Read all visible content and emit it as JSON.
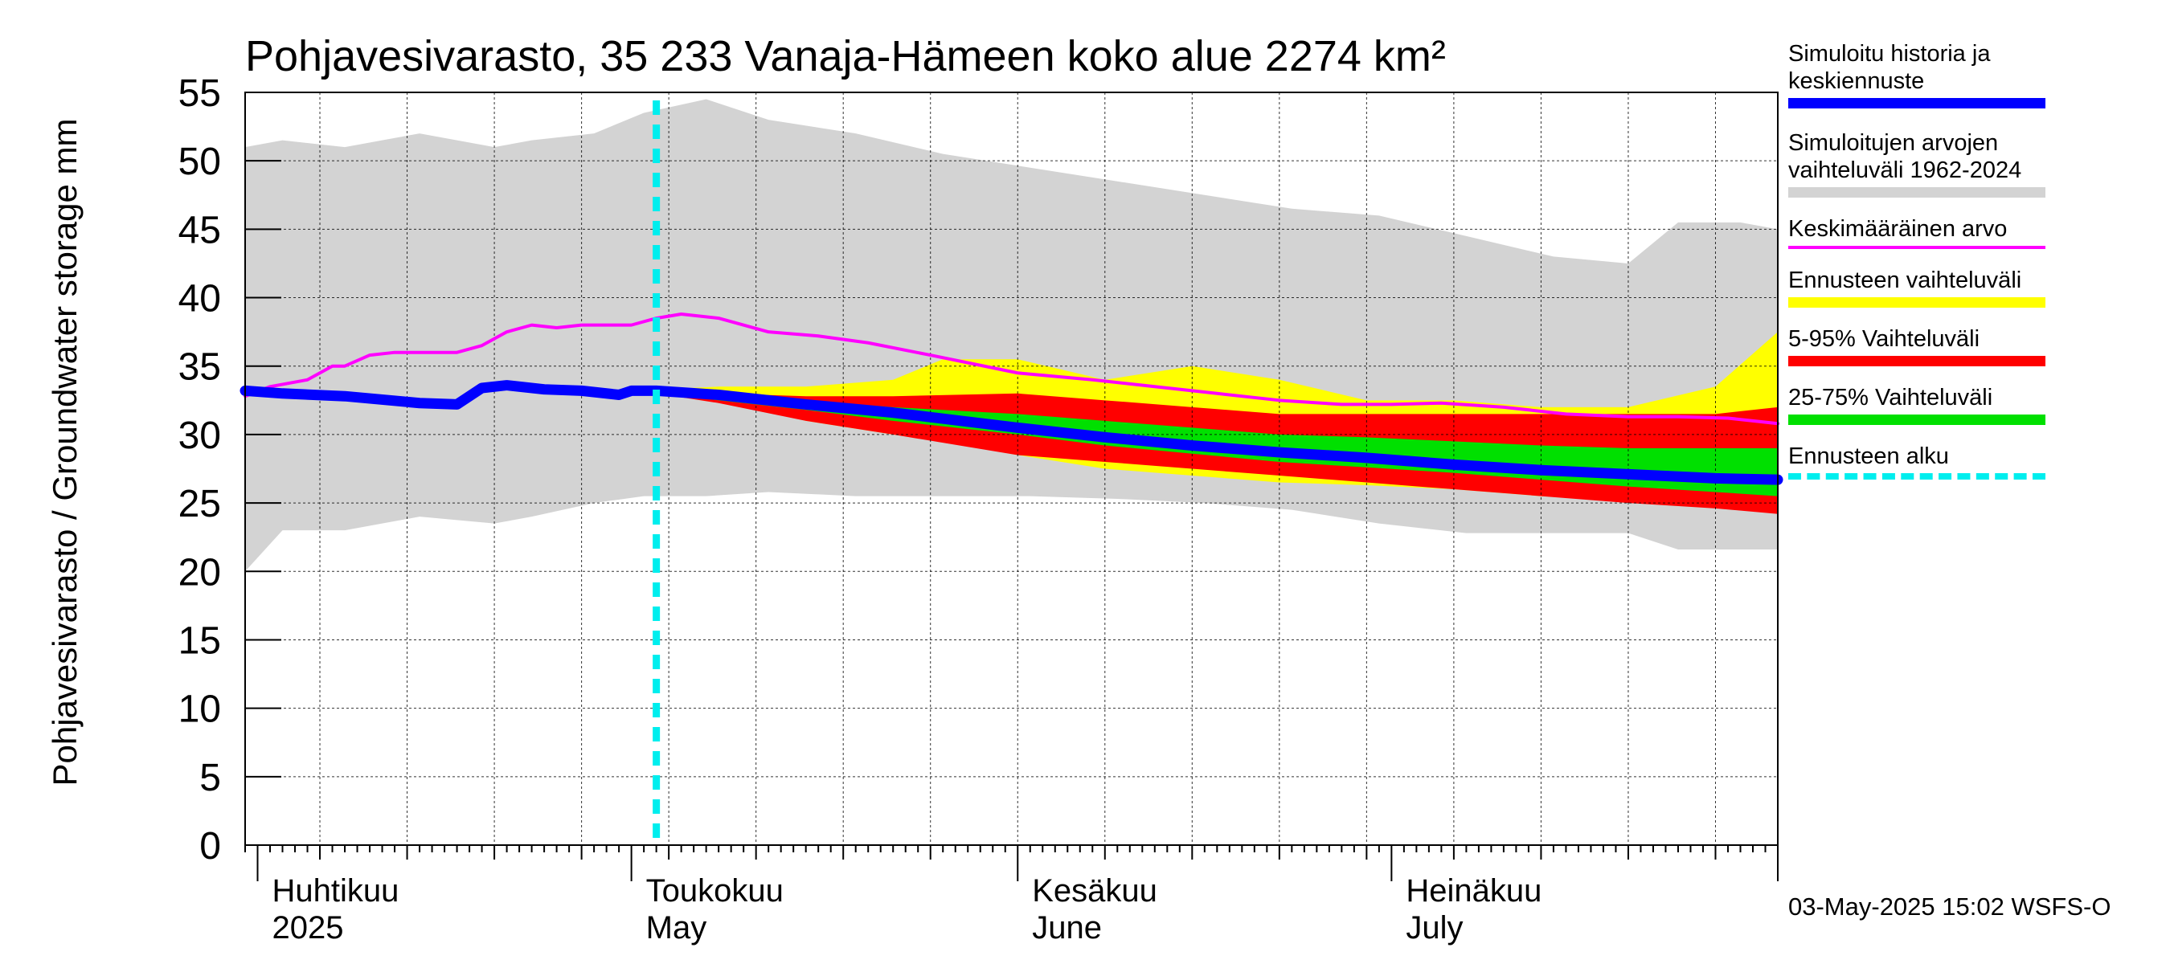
{
  "chart_data": {
    "type": "area",
    "title": "Pohjavesivarasto, 35 233 Vanaja-Hämeen koko alue 2274 km²",
    "ylabel": "Pohjavesivarasto / Groundwater storage   mm",
    "ylim": [
      0,
      55
    ],
    "yticks": [
      0,
      5,
      10,
      15,
      20,
      25,
      30,
      35,
      40,
      45,
      50,
      55
    ],
    "xlim": [
      "2025-03-31",
      "2025-08-01"
    ],
    "grid": true,
    "x_axis_labels": [
      {
        "date": "2025-04-01",
        "line1": "Huhtikuu",
        "line2": "2025"
      },
      {
        "date": "2025-05-01",
        "line1": "Toukokuu",
        "line2": "May"
      },
      {
        "date": "2025-06-01",
        "line1": "Kesäkuu",
        "line2": "June"
      },
      {
        "date": "2025-07-01",
        "line1": "Heinäkuu",
        "line2": "July"
      }
    ],
    "forecast_start": "2025-05-03",
    "series": [
      {
        "name": "Simuloitujen arvojen vaihteluväli 1962-2024",
        "kind": "band",
        "color": "#d3d3d3",
        "x": [
          "2025-03-31",
          "2025-04-03",
          "2025-04-08",
          "2025-04-14",
          "2025-04-20",
          "2025-04-23",
          "2025-04-28",
          "2025-05-02",
          "2025-05-07",
          "2025-05-12",
          "2025-05-19",
          "2025-05-26",
          "2025-06-02",
          "2025-06-09",
          "2025-06-16",
          "2025-06-23",
          "2025-06-30",
          "2025-07-07",
          "2025-07-14",
          "2025-07-20",
          "2025-07-24",
          "2025-07-29",
          "2025-08-01"
        ],
        "upper": [
          51,
          51.5,
          51,
          52,
          51,
          51.5,
          52,
          53.5,
          54.5,
          53,
          52,
          50.5,
          49.5,
          48.5,
          47.5,
          46.5,
          46,
          44.5,
          43,
          42.5,
          45.5,
          45.5,
          45
        ],
        "lower": [
          20,
          23,
          23,
          24,
          23.5,
          24,
          25,
          25.5,
          25.5,
          25.8,
          25.5,
          25.5,
          25.5,
          25.3,
          25,
          24.5,
          23.5,
          22.8,
          22.8,
          22.8,
          21.6,
          21.6,
          21.6
        ]
      },
      {
        "name": "Ennusteen vaihteluväli",
        "kind": "band",
        "color": "#ffff00",
        "x": [
          "2025-05-03",
          "2025-05-08",
          "2025-05-15",
          "2025-05-22",
          "2025-05-26",
          "2025-06-01",
          "2025-06-08",
          "2025-06-15",
          "2025-06-22",
          "2025-06-29",
          "2025-07-06",
          "2025-07-13",
          "2025-07-20",
          "2025-07-27",
          "2025-08-01"
        ],
        "upper": [
          33.3,
          33.5,
          33.5,
          34,
          35.5,
          35.5,
          34,
          35,
          34,
          32.5,
          32.5,
          32,
          32,
          33.5,
          37.5
        ],
        "lower": [
          33,
          32.5,
          31,
          30,
          29.5,
          28.5,
          27.5,
          27,
          26.5,
          26.3,
          26,
          25.5,
          25.2,
          24.9,
          24.7
        ]
      },
      {
        "name": "5-95% Vaihteluväli",
        "kind": "band",
        "color": "#ff0000",
        "x": [
          "2025-05-03",
          "2025-05-08",
          "2025-05-15",
          "2025-05-22",
          "2025-06-01",
          "2025-06-08",
          "2025-06-15",
          "2025-06-22",
          "2025-06-29",
          "2025-07-06",
          "2025-07-13",
          "2025-07-20",
          "2025-07-27",
          "2025-08-01"
        ],
        "upper": [
          33.2,
          33,
          32.8,
          32.8,
          33,
          32.5,
          32,
          31.5,
          31.5,
          31.5,
          31.5,
          31.5,
          31.5,
          32
        ],
        "lower": [
          33,
          32.3,
          31,
          30,
          28.5,
          28,
          27.5,
          27,
          26.5,
          26,
          25.5,
          25,
          24.6,
          24.2
        ]
      },
      {
        "name": "25-75% Vaihteluväli",
        "kind": "band",
        "color": "#00e000",
        "x": [
          "2025-05-03",
          "2025-05-08",
          "2025-05-15",
          "2025-05-22",
          "2025-06-01",
          "2025-06-08",
          "2025-06-15",
          "2025-06-22",
          "2025-06-29",
          "2025-07-06",
          "2025-07-13",
          "2025-07-20",
          "2025-07-27",
          "2025-08-01"
        ],
        "upper": [
          33.1,
          32.9,
          32.5,
          32,
          31.5,
          31,
          30.5,
          30,
          29.8,
          29.5,
          29.2,
          29,
          29,
          29
        ],
        "lower": [
          33,
          32.5,
          31.8,
          31,
          30,
          29.2,
          28.6,
          28,
          27.6,
          27.2,
          26.7,
          26.2,
          25.8,
          25.5
        ]
      },
      {
        "name": "Keskimääräinen arvo",
        "kind": "line",
        "color": "#ff00ff",
        "width": 4,
        "x": [
          "2025-03-31",
          "2025-04-02",
          "2025-04-05",
          "2025-04-07",
          "2025-04-08",
          "2025-04-10",
          "2025-04-12",
          "2025-04-15",
          "2025-04-17",
          "2025-04-19",
          "2025-04-21",
          "2025-04-23",
          "2025-04-25",
          "2025-04-27",
          "2025-04-29",
          "2025-05-01",
          "2025-05-03",
          "2025-05-05",
          "2025-05-08",
          "2025-05-12",
          "2025-05-16",
          "2025-05-20",
          "2025-05-25",
          "2025-06-01",
          "2025-06-07",
          "2025-06-12",
          "2025-06-17",
          "2025-06-22",
          "2025-06-27",
          "2025-07-01",
          "2025-07-05",
          "2025-07-10",
          "2025-07-15",
          "2025-07-20",
          "2025-07-24",
          "2025-07-28",
          "2025-08-01"
        ],
        "y": [
          32.8,
          33.5,
          34,
          35,
          35,
          35.8,
          36,
          36,
          36,
          36.5,
          37.5,
          38,
          37.8,
          38,
          38,
          38,
          38.5,
          38.8,
          38.5,
          37.5,
          37.2,
          36.7,
          35.8,
          34.5,
          34,
          33.5,
          33,
          32.5,
          32.2,
          32.2,
          32.3,
          32,
          31.5,
          31.3,
          31.3,
          31.2,
          30.8
        ]
      },
      {
        "name": "Simuloitu historia ja keskiennuste",
        "kind": "line",
        "color": "#0000ff",
        "width": 13,
        "x": [
          "2025-03-31",
          "2025-04-03",
          "2025-04-08",
          "2025-04-14",
          "2025-04-17",
          "2025-04-19",
          "2025-04-21",
          "2025-04-24",
          "2025-04-27",
          "2025-04-30",
          "2025-05-01",
          "2025-05-03",
          "2025-05-08",
          "2025-05-15",
          "2025-05-22",
          "2025-06-01",
          "2025-06-08",
          "2025-06-15",
          "2025-06-22",
          "2025-06-29",
          "2025-07-06",
          "2025-07-13",
          "2025-07-20",
          "2025-07-27",
          "2025-08-01"
        ],
        "y": [
          33.2,
          33,
          32.8,
          32.3,
          32.2,
          33.4,
          33.6,
          33.3,
          33.2,
          32.9,
          33.2,
          33.2,
          32.9,
          32.2,
          31.6,
          30.5,
          29.8,
          29.2,
          28.7,
          28.3,
          27.8,
          27.4,
          27.1,
          26.8,
          26.7
        ]
      }
    ]
  },
  "legend": [
    {
      "text": "Simuloitu historia ja\nkeskiennuste",
      "color": "#0000ff",
      "thickness": 13,
      "style": "solid"
    },
    {
      "text": "Simuloitujen arvojen\nvaihteluväli 1962-2024",
      "color": "#d3d3d3",
      "thickness": 13,
      "style": "solid"
    },
    {
      "text": "Keskimääräinen arvo",
      "color": "#ff00ff",
      "thickness": 4,
      "style": "solid"
    },
    {
      "text": "Ennusteen vaihteluväli",
      "color": "#ffff00",
      "thickness": 13,
      "style": "solid"
    },
    {
      "text": "5-95% Vaihteluväli",
      "color": "#ff0000",
      "thickness": 13,
      "style": "solid"
    },
    {
      "text": "25-75% Vaihteluväli",
      "color": "#00e000",
      "thickness": 13,
      "style": "solid"
    },
    {
      "text": "Ennusteen alku",
      "color": "#00eeee",
      "thickness": 8,
      "style": "dashed"
    }
  ],
  "footer": "03-May-2025 15:02 WSFS-O",
  "colors": {
    "forecast_start_line": "#00eeee",
    "grid": "#000000",
    "axis": "#000000"
  }
}
